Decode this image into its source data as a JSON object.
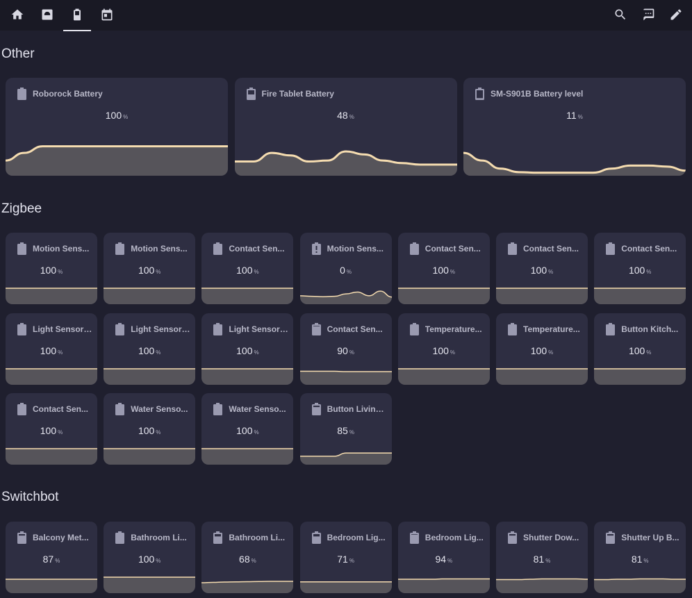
{
  "toolbar": {
    "tabs": [
      {
        "icon": "home-icon"
      },
      {
        "icon": "robot-vacuum-icon"
      },
      {
        "icon": "battery-icon",
        "active": true
      },
      {
        "icon": "calendar-icon"
      }
    ],
    "actions": [
      {
        "icon": "search-icon"
      },
      {
        "icon": "assist-chat-icon"
      },
      {
        "icon": "edit-pencil-icon"
      }
    ]
  },
  "sections": {
    "other": {
      "title": "Other"
    },
    "zigbee": {
      "title": "Zigbee"
    },
    "switchbot": {
      "title": "Switchbot"
    }
  },
  "unit": "%",
  "colors": {
    "background": "#1f1f2e",
    "card": "#2e2e42",
    "graph_line": "#f5dcb0",
    "graph_fill": "#56545a"
  },
  "cards": {
    "other": [
      {
        "name": "Roborock Battery",
        "value": "100",
        "icon": "battery-icon"
      },
      {
        "name": "Fire Tablet Battery",
        "value": "48",
        "icon": "battery-50-icon"
      },
      {
        "name": "SM-S901B Battery level",
        "value": "11",
        "icon": "battery-10-icon"
      }
    ],
    "zigbee": [
      {
        "name": "Motion Sens...",
        "value": "100",
        "icon": "battery-icon"
      },
      {
        "name": "Motion Sens...",
        "value": "100",
        "icon": "battery-icon"
      },
      {
        "name": "Contact Sen...",
        "value": "100",
        "icon": "battery-icon"
      },
      {
        "name": "Motion Sens...",
        "value": "0",
        "icon": "battery-alert-icon"
      },
      {
        "name": "Contact Sen...",
        "value": "100",
        "icon": "battery-icon"
      },
      {
        "name": "Contact Sen...",
        "value": "100",
        "icon": "battery-icon"
      },
      {
        "name": "Contact Sen...",
        "value": "100",
        "icon": "battery-icon"
      },
      {
        "name": "Light Sensor ...",
        "value": "100",
        "icon": "battery-icon"
      },
      {
        "name": "Light Sensor ...",
        "value": "100",
        "icon": "battery-icon"
      },
      {
        "name": "Light Sensor ...",
        "value": "100",
        "icon": "battery-icon"
      },
      {
        "name": "Contact Sen...",
        "value": "90",
        "icon": "battery-90-icon"
      },
      {
        "name": "Temperature...",
        "value": "100",
        "icon": "battery-icon"
      },
      {
        "name": "Temperature...",
        "value": "100",
        "icon": "battery-icon"
      },
      {
        "name": "Button Kitch...",
        "value": "100",
        "icon": "battery-icon"
      },
      {
        "name": "Contact Sen...",
        "value": "100",
        "icon": "battery-icon"
      },
      {
        "name": "Water Senso...",
        "value": "100",
        "icon": "battery-icon"
      },
      {
        "name": "Water Senso...",
        "value": "100",
        "icon": "battery-icon"
      },
      {
        "name": "Button Living...",
        "value": "85",
        "icon": "battery-80-icon"
      }
    ],
    "switchbot": [
      {
        "name": "Balcony Met...",
        "value": "87",
        "icon": "battery-80-icon"
      },
      {
        "name": "Bathroom Li...",
        "value": "100",
        "icon": "battery-icon"
      },
      {
        "name": "Bathroom Li...",
        "value": "68",
        "icon": "battery-70-icon"
      },
      {
        "name": "Bedroom Lig...",
        "value": "71",
        "icon": "battery-70-icon"
      },
      {
        "name": "Bedroom Lig...",
        "value": "94",
        "icon": "battery-90-icon"
      },
      {
        "name": "Shutter Dow...",
        "value": "81",
        "icon": "battery-80-icon"
      },
      {
        "name": "Shutter Up B...",
        "value": "81",
        "icon": "battery-80-icon"
      }
    ]
  }
}
